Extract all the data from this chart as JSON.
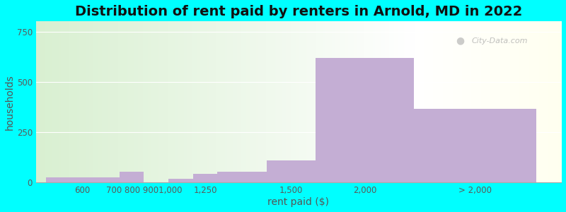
{
  "title": "Distribution of rent paid by renters in Arnold, MD in 2022",
  "xlabel": "rent paid ($)",
  "ylabel": "households",
  "background_color": "#00FFFF",
  "bar_color": "#c4aed4",
  "bar_lefts": [
    0,
    1.5,
    2.5,
    3.0,
    3.5,
    4.5,
    5.5,
    7.5
  ],
  "bar_widths": [
    1.5,
    0.5,
    0.5,
    0.5,
    1.0,
    1.0,
    2.0,
    2.5
  ],
  "bar_heights": [
    25,
    55,
    20,
    45,
    55,
    110,
    620,
    365
  ],
  "xlim": [
    -0.2,
    10.5
  ],
  "ylim": [
    0,
    800
  ],
  "yticks": [
    0,
    250,
    500,
    750
  ],
  "xtick_positions": [
    0.75,
    2.0,
    3.25,
    5.0,
    6.5,
    8.75
  ],
  "xtick_labels": [
    "600",
    "700 800 9001,000",
    "1,250",
    "1,500",
    "2,000",
    "> 2,000"
  ],
  "split_x": 7.5,
  "title_fontsize": 14,
  "axis_label_fontsize": 10,
  "tick_fontsize": 8.5,
  "watermark": "City-Data.com"
}
